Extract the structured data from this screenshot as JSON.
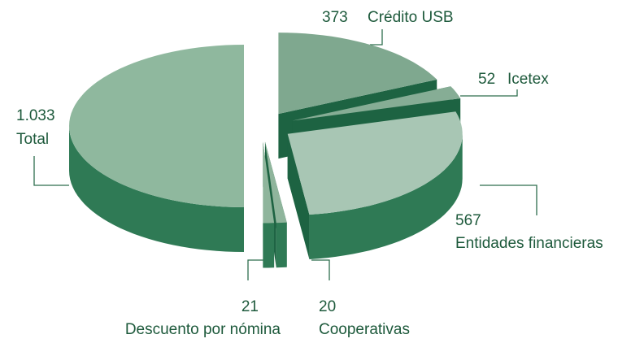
{
  "chart_data": {
    "type": "pie",
    "categories": [
      "Total",
      "Crédito USB",
      "Icetex",
      "Entidades financieras",
      "Cooperativas",
      "Descuento por nómina"
    ],
    "values": [
      1033,
      373,
      52,
      567,
      20,
      21
    ],
    "value_labels": [
      "1.033",
      "373",
      "52",
      "567",
      "20",
      "21"
    ],
    "colors": [
      "#8fb89e",
      "#7fa88f",
      "#86ad95",
      "#a8c6b4",
      "#8fb59c",
      "#8fb59c"
    ],
    "side_color": "#2f7a55",
    "cut_color": "#1d6342"
  }
}
